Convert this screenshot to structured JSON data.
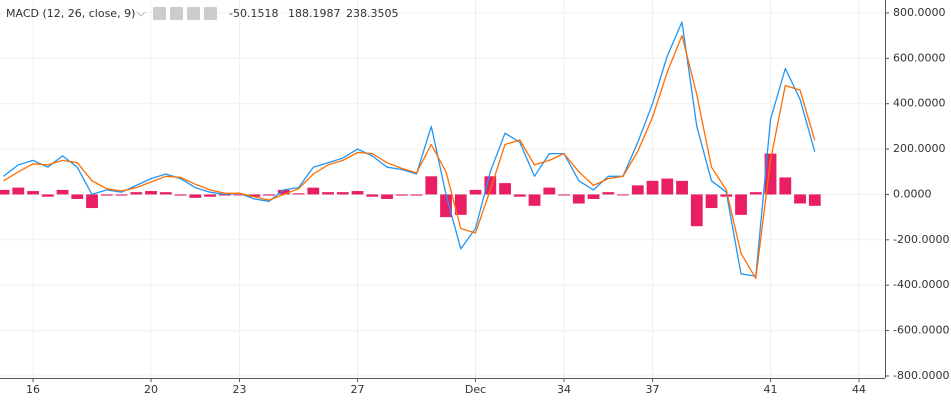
{
  "chart_data": {
    "type": "line",
    "title": "MACD (12, 26, close, 9)",
    "x": [
      15.0,
      15.5,
      16.0,
      16.5,
      17.0,
      17.5,
      18.0,
      18.5,
      19.0,
      19.5,
      20.0,
      20.5,
      21.0,
      21.5,
      22.0,
      22.5,
      23.0,
      23.5,
      24.0,
      24.5,
      25.0,
      25.5,
      26.0,
      26.5,
      27.0,
      27.5,
      28.0,
      28.5,
      29.0,
      29.5,
      30.0,
      30.5,
      31.0,
      31.5,
      32.0,
      32.5,
      33.0,
      33.5,
      34.0,
      34.5,
      35.0,
      35.5,
      36.0,
      36.5,
      37.0,
      37.5,
      38.0,
      38.5,
      39.0,
      39.5,
      40.0,
      40.5,
      41.0,
      41.5,
      42.0,
      42.5
    ],
    "series": [
      {
        "name": "Histogram",
        "type": "bar",
        "color": "#e91e63",
        "values": [
          20,
          30,
          15,
          -10,
          20,
          -20,
          -60,
          -5,
          -5,
          10,
          15,
          10,
          -5,
          -15,
          -10,
          -5,
          0,
          -10,
          -5,
          20,
          5,
          30,
          10,
          10,
          15,
          -10,
          -20,
          -5,
          -5,
          80,
          -100,
          -90,
          20,
          80,
          50,
          -10,
          -50,
          30,
          0,
          -40,
          -20,
          10,
          0,
          40,
          60,
          70,
          60,
          -140,
          -60,
          -10,
          -90,
          10,
          180,
          75,
          -40,
          -50.1518
        ]
      },
      {
        "name": "MACD",
        "type": "line",
        "color": "#2196f3",
        "values": [
          80,
          130,
          150,
          120,
          170,
          120,
          0,
          20,
          10,
          40,
          70,
          90,
          70,
          30,
          10,
          0,
          5,
          -20,
          -30,
          20,
          30,
          120,
          140,
          160,
          200,
          170,
          120,
          110,
          90,
          300,
          0,
          -240,
          -150,
          100,
          270,
          230,
          80,
          180,
          180,
          60,
          20,
          80,
          80,
          230,
          400,
          610,
          760,
          300,
          60,
          10,
          -350,
          -360,
          330,
          555,
          420,
          188.1987
        ]
      },
      {
        "name": "Signal",
        "type": "line",
        "color": "#ff6d00",
        "values": [
          60,
          100,
          135,
          130,
          150,
          140,
          60,
          25,
          15,
          30,
          55,
          80,
          75,
          45,
          20,
          5,
          5,
          -10,
          -25,
          0,
          25,
          90,
          130,
          150,
          185,
          180,
          140,
          115,
          95,
          220,
          100,
          -150,
          -170,
          20,
          220,
          240,
          130,
          150,
          180,
          100,
          40,
          70,
          80,
          190,
          340,
          540,
          700,
          440,
          120,
          20,
          -260,
          -370,
          150,
          480,
          460,
          238.3505
        ]
      }
    ],
    "xlim": [
      14.88,
      44.88
    ],
    "xticks": [
      16,
      20,
      23,
      27,
      {
        "value": 31,
        "label": "Dec"
      },
      34,
      37,
      41,
      44
    ],
    "ylim": [
      -809,
      857
    ],
    "yticks": [
      {
        "value": 800,
        "label": "800.0000"
      },
      {
        "value": 600,
        "label": "600.0000"
      },
      {
        "value": 400,
        "label": "400.0000"
      },
      {
        "value": 200,
        "label": "200.0000"
      },
      {
        "value": 0,
        "label": "0.0000"
      },
      {
        "value": -200,
        "label": "-200.0000"
      },
      {
        "value": -400,
        "label": "-400.0000"
      },
      {
        "value": -600,
        "label": "-600.0000"
      },
      {
        "value": -800,
        "label": "-800.0000"
      }
    ],
    "grid": true
  }
}
